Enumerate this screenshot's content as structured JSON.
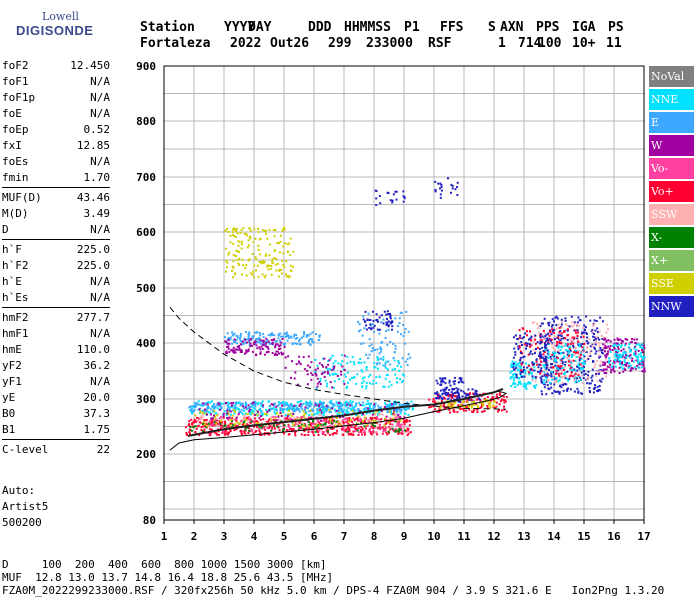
{
  "logo": {
    "line1": "Lowell",
    "line2": "DIGISONDE"
  },
  "header": {
    "labels": [
      "Station",
      "YYYY",
      "DAY",
      "DDD",
      "HHMMSS",
      "P1",
      "FFS",
      "S",
      "AXN",
      "PPS",
      "IGA",
      "PS"
    ],
    "values": [
      "Fortaleza",
      "2022",
      "Out26",
      "299",
      "233000",
      "RSF",
      "1",
      "714",
      "100",
      "10+",
      "11"
    ]
  },
  "params": [
    [
      {
        "k": "foF2",
        "v": "12.450"
      },
      {
        "k": "foF1",
        "v": "N/A"
      },
      {
        "k": "foF1p",
        "v": "N/A"
      },
      {
        "k": "foE",
        "v": "N/A"
      },
      {
        "k": "foEp",
        "v": "0.52"
      },
      {
        "k": "fxI",
        "v": "12.85"
      },
      {
        "k": "foEs",
        "v": "N/A"
      },
      {
        "k": "fmin",
        "v": "1.70"
      }
    ],
    [
      {
        "k": "MUF(D)",
        "v": "43.46"
      },
      {
        "k": "M(D)",
        "v": "3.49"
      },
      {
        "k": "D",
        "v": "N/A"
      }
    ],
    [
      {
        "k": "h`F",
        "v": "225.0"
      },
      {
        "k": "h`F2",
        "v": "225.0"
      },
      {
        "k": "h`E",
        "v": "N/A"
      },
      {
        "k": "h`Es",
        "v": "N/A"
      }
    ],
    [
      {
        "k": "hmF2",
        "v": "277.7"
      },
      {
        "k": "hmF1",
        "v": "N/A"
      },
      {
        "k": "hmE",
        "v": "110.0"
      },
      {
        "k": "yF2",
        "v": "36.2"
      },
      {
        "k": "yF1",
        "v": "N/A"
      },
      {
        "k": "yE",
        "v": "20.0"
      },
      {
        "k": "B0",
        "v": "37.3"
      },
      {
        "k": "B1",
        "v": "1.75"
      }
    ],
    [
      {
        "k": "C-level",
        "v": "22"
      }
    ]
  ],
  "auto": {
    "line1": "Auto:",
    "line2": "Artist5",
    "line3": "500200"
  },
  "footer": {
    "line1": "D     100  200  400  600  800 1000 1500 3000 [km]",
    "line2": "MUF  12.8 13.0 13.7 14.8 16.4 18.8 25.6 43.5 [MHz]",
    "line3": "FZA0M_2022299233000.RSF / 320fx256h 50 kHz 5.0 km / DPS-4 FZA0M 904 / 3.9 S 321.6 E   Ion2Png 1.3.20"
  },
  "legend": [
    {
      "label": "NoVal",
      "color": "#808080"
    },
    {
      "label": "NNE",
      "color": "#00e0ff"
    },
    {
      "label": "E",
      "color": "#3ca8ff"
    },
    {
      "label": "W",
      "color": "#a000a0"
    },
    {
      "label": "Vo-",
      "color": "#ff40a0"
    },
    {
      "label": "Vo+",
      "color": "#ff0030"
    },
    {
      "label": "SSW",
      "color": "#ffb0b0"
    },
    {
      "label": "X-",
      "color": "#008000"
    },
    {
      "label": "X+",
      "color": "#80c060"
    },
    {
      "label": "SSE",
      "color": "#d0d000"
    },
    {
      "label": "NNW",
      "color": "#2020c0"
    }
  ],
  "chart_data": {
    "type": "scatter",
    "xlim": [
      1,
      17
    ],
    "ylim": [
      80,
      900
    ],
    "x_ticks": [
      1,
      2,
      3,
      4,
      5,
      6,
      7,
      8,
      9,
      10,
      11,
      12,
      13,
      14,
      15,
      16,
      17
    ],
    "y_ticks": [
      80,
      200,
      300,
      400,
      500,
      600,
      700,
      800,
      900
    ],
    "grid": true,
    "legend_placement": "right",
    "lines": [
      {
        "style": "solid",
        "x": [
          1.2,
          1.5,
          2,
          3,
          4,
          5,
          6,
          7,
          8,
          9,
          10,
          11,
          11.8,
          12.2,
          12.4,
          12.3,
          12.1
        ],
        "y": [
          207,
          220,
          226,
          230,
          235,
          240,
          245,
          251,
          257,
          265,
          277,
          288,
          297,
          303,
          310,
          312,
          314
        ]
      },
      {
        "style": "dashed",
        "x": [
          1.2,
          1.5,
          2,
          3,
          4,
          5,
          6,
          7,
          8,
          9,
          10,
          11,
          12,
          12.4
        ],
        "y": [
          465,
          445,
          420,
          380,
          350,
          330,
          317,
          308,
          300,
          292,
          287,
          283,
          282,
          281
        ]
      },
      {
        "style": "trace",
        "x": [
          1.8,
          3,
          4,
          5,
          6,
          7,
          8,
          9,
          10,
          11,
          12,
          12.3
        ],
        "y": [
          233,
          245,
          252,
          258,
          264,
          270,
          279,
          286,
          290,
          300,
          312,
          318
        ]
      }
    ],
    "clusters": [
      {
        "series": "NNE",
        "x": [
          1.8,
          9.3
        ],
        "y": [
          272,
          298
        ],
        "n": 340
      },
      {
        "series": "E",
        "x": [
          1.8,
          9.3
        ],
        "y": [
          278,
          296
        ],
        "n": 260
      },
      {
        "series": "Vo+",
        "x": [
          1.7,
          9.2
        ],
        "y": [
          236,
          268
        ],
        "n": 520
      },
      {
        "series": "Vo-",
        "x": [
          2,
          9
        ],
        "y": [
          240,
          270
        ],
        "n": 140
      },
      {
        "series": "SSW",
        "x": [
          2,
          9
        ],
        "y": [
          248,
          276
        ],
        "n": 100
      },
      {
        "series": "X-",
        "x": [
          1.8,
          9
        ],
        "y": [
          242,
          262
        ],
        "n": 80
      },
      {
        "series": "SSE",
        "x": [
          2,
          9
        ],
        "y": [
          252,
          282
        ],
        "n": 100
      },
      {
        "series": "W",
        "x": [
          1.9,
          9
        ],
        "y": [
          262,
          296
        ],
        "n": 90
      },
      {
        "series": "Vo+",
        "x": [
          9.8,
          12.4
        ],
        "y": [
          277,
          312
        ],
        "n": 160
      },
      {
        "series": "NNW",
        "x": [
          10,
          11.5
        ],
        "y": [
          296,
          320
        ],
        "n": 50
      },
      {
        "series": "NNE",
        "x": [
          12.5,
          13.4
        ],
        "y": [
          320,
          370
        ],
        "n": 90
      },
      {
        "series": "NNW",
        "x": [
          13.5,
          15.6
        ],
        "y": [
          310,
          450
        ],
        "n": 320
      },
      {
        "series": "NNE",
        "x": [
          13.6,
          15
        ],
        "y": [
          330,
          400
        ],
        "n": 120
      },
      {
        "series": "SSW",
        "x": [
          13.2,
          15.8
        ],
        "y": [
          330,
          440
        ],
        "n": 150
      },
      {
        "series": "Vo+",
        "x": [
          12.8,
          15
        ],
        "y": [
          340,
          430
        ],
        "n": 120
      },
      {
        "series": "W",
        "x": [
          15.6,
          17
        ],
        "y": [
          348,
          410
        ],
        "n": 160
      },
      {
        "series": "NNE",
        "x": [
          15.8,
          17
        ],
        "y": [
          355,
          400
        ],
        "n": 90
      },
      {
        "series": "NNW",
        "x": [
          12.6,
          13.8
        ],
        "y": [
          340,
          420
        ],
        "n": 100
      },
      {
        "series": "SSE",
        "x": [
          3,
          5.3
        ],
        "y": [
          520,
          610
        ],
        "n": 170
      },
      {
        "series": "E",
        "x": [
          3,
          6.2
        ],
        "y": [
          398,
          422
        ],
        "n": 160
      },
      {
        "series": "W",
        "x": [
          3,
          5
        ],
        "y": [
          380,
          410
        ],
        "n": 110
      },
      {
        "series": "E",
        "x": [
          7.4,
          9.2
        ],
        "y": [
          360,
          460
        ],
        "n": 80
      },
      {
        "series": "NNW",
        "x": [
          7.6,
          8.6
        ],
        "y": [
          425,
          460
        ],
        "n": 50
      },
      {
        "series": "NNE",
        "x": [
          6,
          9
        ],
        "y": [
          320,
          380
        ],
        "n": 120
      },
      {
        "series": "W",
        "x": [
          5,
          7
        ],
        "y": [
          320,
          380
        ],
        "n": 60
      },
      {
        "series": "NNW",
        "x": [
          8,
          9
        ],
        "y": [
          650,
          680
        ],
        "n": 20
      },
      {
        "series": "NNW",
        "x": [
          10,
          10.8
        ],
        "y": [
          660,
          700
        ],
        "n": 20
      },
      {
        "series": "NNW",
        "x": [
          10,
          11
        ],
        "y": [
          300,
          340
        ],
        "n": 60
      },
      {
        "series": "SSE",
        "x": [
          10,
          12
        ],
        "y": [
          285,
          300
        ],
        "n": 50
      }
    ]
  }
}
